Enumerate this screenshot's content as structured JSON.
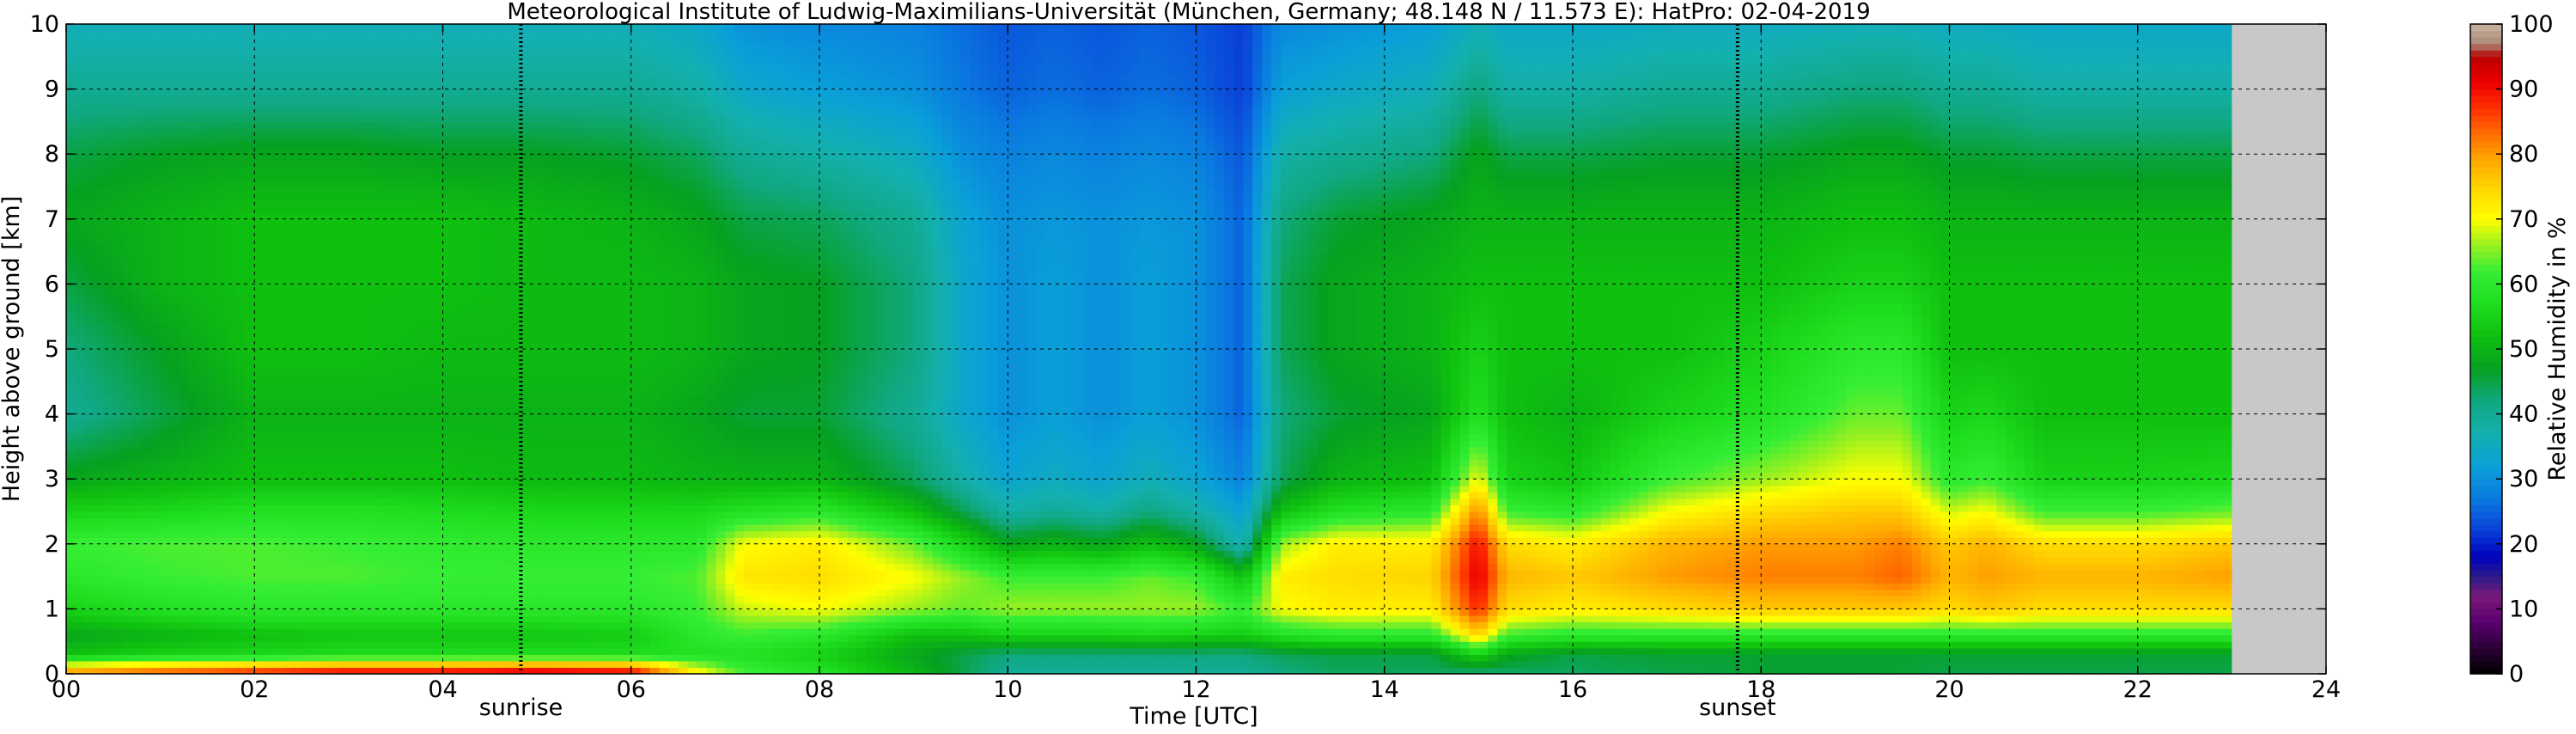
{
  "chart_data": {
    "type": "heatmap",
    "title": "Meteorological Institute of Ludwig-Maximilians-Universität (München, Germany; 48.148 N / 11.573 E):    HatPro: 02-04-2019",
    "xlabel": "Time [UTC]",
    "ylabel": "Height above ground [km]",
    "colorbar_label": "Relative Humidity in %",
    "xlim": [
      0,
      24
    ],
    "ylim": [
      0,
      10
    ],
    "x_ticks": [
      "00",
      "02",
      "04",
      "06",
      "08",
      "10",
      "12",
      "14",
      "16",
      "18",
      "20",
      "22",
      "24"
    ],
    "y_ticks": [
      "0",
      "1",
      "2",
      "3",
      "4",
      "5",
      "6",
      "7",
      "8",
      "9",
      "10"
    ],
    "colorbar_ticks": [
      "0",
      "10",
      "20",
      "30",
      "40",
      "50",
      "60",
      "70",
      "80",
      "90",
      "100"
    ],
    "colorbar_range": [
      0,
      100
    ],
    "grid": true,
    "data_end_hour": 23.0,
    "missing_color": "#c8c8c8",
    "events": [
      {
        "label": "sunrise",
        "hour": 4.83
      },
      {
        "label": "sunset",
        "hour": 17.75
      }
    ],
    "height_levels_km": [
      0.05,
      0.3,
      0.6,
      1.0,
      1.5,
      2.0,
      2.5,
      3.0,
      4.0,
      5.0,
      6.0,
      7.0,
      8.0,
      9.0,
      10.0
    ],
    "time_series": [
      {
        "hour": 0.0,
        "rh": [
          78,
          52,
          48,
          55,
          60,
          62,
          55,
          48,
          40,
          42,
          45,
          48,
          45,
          40,
          36
        ]
      },
      {
        "hour": 1.0,
        "rh": [
          82,
          55,
          50,
          58,
          62,
          63,
          56,
          50,
          45,
          47,
          50,
          50,
          47,
          40,
          36
        ]
      },
      {
        "hour": 2.0,
        "rh": [
          85,
          56,
          52,
          60,
          63,
          63,
          58,
          52,
          50,
          52,
          52,
          52,
          48,
          40,
          36
        ]
      },
      {
        "hour": 3.0,
        "rh": [
          88,
          57,
          53,
          60,
          63,
          62,
          58,
          52,
          50,
          52,
          52,
          52,
          48,
          40,
          36
        ]
      },
      {
        "hour": 4.0,
        "rh": [
          88,
          57,
          53,
          60,
          62,
          61,
          57,
          52,
          50,
          51,
          52,
          52,
          47,
          40,
          36
        ]
      },
      {
        "hour": 5.0,
        "rh": [
          90,
          57,
          53,
          60,
          62,
          60,
          56,
          51,
          50,
          51,
          51,
          51,
          47,
          40,
          36
        ]
      },
      {
        "hour": 6.0,
        "rh": [
          88,
          57,
          54,
          60,
          62,
          60,
          56,
          51,
          50,
          51,
          51,
          50,
          46,
          40,
          36
        ]
      },
      {
        "hour": 6.7,
        "rh": [
          70,
          58,
          60,
          62,
          63,
          60,
          56,
          50,
          48,
          50,
          50,
          48,
          44,
          38,
          34
        ]
      },
      {
        "hour": 7.2,
        "rh": [
          62,
          58,
          62,
          68,
          73,
          70,
          58,
          50,
          46,
          48,
          48,
          45,
          40,
          34,
          30
        ]
      },
      {
        "hour": 8.0,
        "rh": [
          58,
          55,
          60,
          70,
          74,
          72,
          60,
          50,
          46,
          47,
          47,
          44,
          38,
          32,
          29
        ]
      },
      {
        "hour": 9.0,
        "rh": [
          50,
          48,
          52,
          66,
          70,
          64,
          52,
          44,
          40,
          42,
          42,
          40,
          35,
          30,
          28
        ]
      },
      {
        "hour": 9.5,
        "rh": [
          45,
          45,
          52,
          64,
          66,
          56,
          45,
          38,
          34,
          34,
          34,
          33,
          30,
          27,
          26
        ]
      },
      {
        "hour": 10.0,
        "rh": [
          40,
          42,
          55,
          66,
          62,
          48,
          38,
          33,
          30,
          30,
          30,
          30,
          28,
          25,
          24
        ]
      },
      {
        "hour": 10.5,
        "rh": [
          40,
          42,
          55,
          66,
          62,
          50,
          40,
          35,
          32,
          32,
          32,
          31,
          29,
          26,
          25
        ]
      },
      {
        "hour": 11.0,
        "rh": [
          40,
          42,
          55,
          66,
          62,
          48,
          38,
          33,
          30,
          30,
          30,
          30,
          28,
          25,
          24
        ]
      },
      {
        "hour": 11.5,
        "rh": [
          40,
          42,
          56,
          66,
          64,
          52,
          42,
          36,
          32,
          32,
          32,
          31,
          29,
          26,
          25
        ]
      },
      {
        "hour": 12.0,
        "rh": [
          40,
          42,
          55,
          66,
          62,
          48,
          38,
          33,
          30,
          30,
          30,
          30,
          28,
          25,
          24
        ]
      },
      {
        "hour": 12.5,
        "rh": [
          40,
          42,
          54,
          62,
          52,
          36,
          32,
          28,
          25,
          25,
          25,
          25,
          24,
          22,
          22
        ]
      },
      {
        "hour": 12.9,
        "rh": [
          42,
          44,
          58,
          70,
          72,
          66,
          52,
          44,
          42,
          44,
          44,
          42,
          38,
          32,
          29
        ]
      },
      {
        "hour": 13.5,
        "rh": [
          44,
          45,
          60,
          72,
          74,
          72,
          58,
          50,
          46,
          48,
          48,
          46,
          40,
          34,
          30
        ]
      },
      {
        "hour": 14.5,
        "rh": [
          44,
          45,
          60,
          72,
          75,
          72,
          60,
          52,
          48,
          50,
          50,
          48,
          42,
          36,
          32
        ]
      },
      {
        "hour": 15.0,
        "rh": [
          44,
          55,
          75,
          88,
          92,
          90,
          82,
          70,
          58,
          55,
          52,
          50,
          48,
          42,
          36
        ]
      },
      {
        "hour": 15.3,
        "rh": [
          44,
          48,
          62,
          74,
          78,
          74,
          62,
          55,
          52,
          52,
          52,
          50,
          45,
          38,
          34
        ]
      },
      {
        "hour": 16.0,
        "rh": [
          44,
          45,
          60,
          72,
          76,
          72,
          60,
          53,
          50,
          52,
          52,
          50,
          45,
          38,
          34
        ]
      },
      {
        "hour": 17.0,
        "rh": [
          45,
          46,
          60,
          74,
          80,
          78,
          70,
          62,
          55,
          52,
          52,
          50,
          46,
          40,
          35
        ]
      },
      {
        "hour": 18.0,
        "rh": [
          46,
          46,
          60,
          76,
          82,
          80,
          74,
          66,
          58,
          55,
          52,
          50,
          46,
          40,
          35
        ]
      },
      {
        "hour": 19.0,
        "rh": [
          46,
          46,
          60,
          76,
          82,
          80,
          76,
          70,
          64,
          60,
          55,
          52,
          48,
          42,
          36
        ]
      },
      {
        "hour": 19.5,
        "rh": [
          46,
          46,
          60,
          76,
          84,
          82,
          76,
          70,
          64,
          60,
          55,
          52,
          48,
          42,
          36
        ]
      },
      {
        "hour": 20.0,
        "rh": [
          45,
          46,
          60,
          74,
          78,
          76,
          68,
          60,
          55,
          52,
          52,
          50,
          46,
          40,
          35
        ]
      },
      {
        "hour": 20.4,
        "rh": [
          45,
          46,
          60,
          76,
          80,
          78,
          70,
          62,
          56,
          52,
          52,
          50,
          46,
          40,
          35
        ]
      },
      {
        "hour": 21.0,
        "rh": [
          45,
          46,
          60,
          74,
          78,
          74,
          62,
          55,
          52,
          52,
          52,
          50,
          45,
          38,
          34
        ]
      },
      {
        "hour": 22.0,
        "rh": [
          45,
          46,
          60,
          74,
          78,
          74,
          62,
          55,
          52,
          52,
          52,
          50,
          45,
          38,
          34
        ]
      },
      {
        "hour": 23.0,
        "rh": [
          45,
          46,
          60,
          74,
          80,
          76,
          64,
          56,
          52,
          52,
          52,
          50,
          45,
          38,
          34
        ]
      }
    ]
  }
}
